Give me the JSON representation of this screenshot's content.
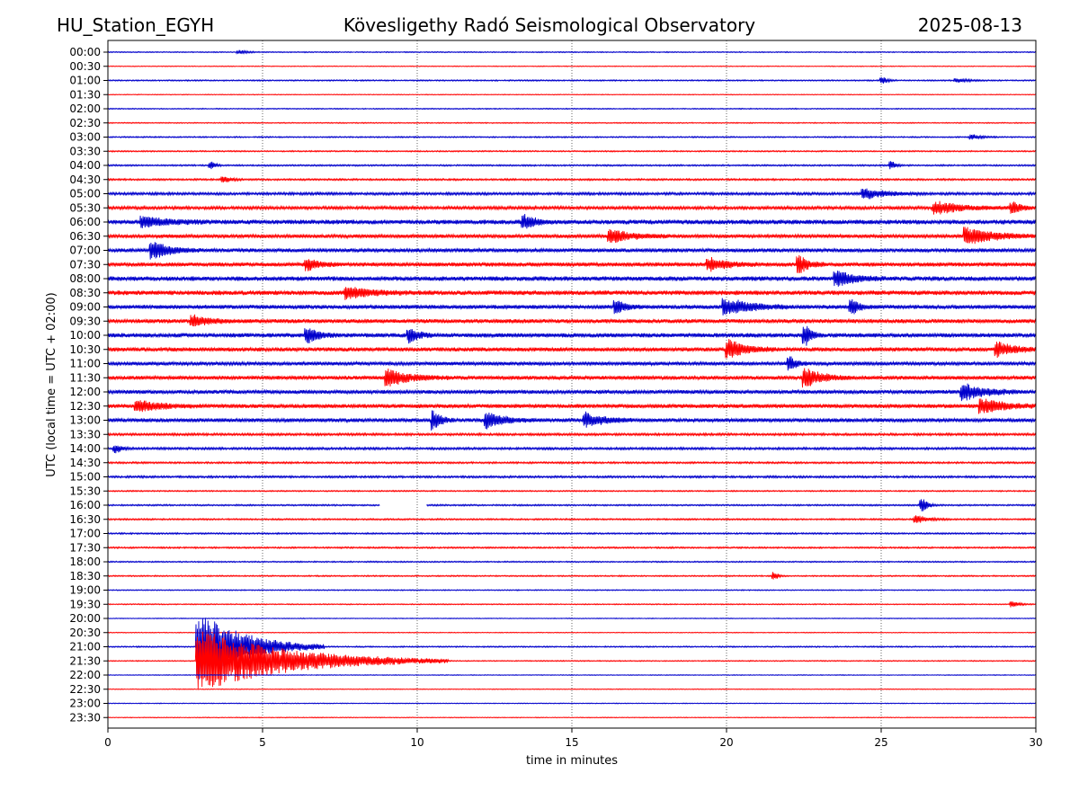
{
  "header": {
    "station": "HU_Station_EGYH",
    "title": "Kövesligethy Radó Seismological Observatory",
    "date": "2025-08-13"
  },
  "chart_data": {
    "type": "line",
    "title": "Kövesligethy Radó Seismological Observatory",
    "xlabel": "time in minutes",
    "ylabel": "UTC (local time = UTC + 02:00)",
    "xlim": [
      0,
      30
    ],
    "xticks": [
      0,
      5,
      10,
      15,
      20,
      25,
      30
    ],
    "xgrid_dotted": [
      5,
      10,
      15,
      20,
      25
    ],
    "rows": [
      "00:00",
      "00:30",
      "01:00",
      "01:30",
      "02:00",
      "02:30",
      "03:00",
      "03:30",
      "04:00",
      "04:30",
      "05:00",
      "05:30",
      "06:00",
      "06:30",
      "07:00",
      "07:30",
      "08:00",
      "08:30",
      "09:00",
      "09:30",
      "10:00",
      "10:30",
      "11:00",
      "11:30",
      "12:00",
      "12:30",
      "13:00",
      "13:30",
      "14:00",
      "14:30",
      "15:00",
      "15:30",
      "16:00",
      "16:30",
      "17:00",
      "17:30",
      "18:00",
      "18:30",
      "19:00",
      "19:30",
      "20:00",
      "20:30",
      "21:00",
      "21:30",
      "22:00",
      "22:30",
      "23:00",
      "23:30"
    ],
    "colors": [
      "#0000cc",
      "#ff0000"
    ],
    "noise_level": [
      0.4,
      0.3,
      0.5,
      0.3,
      0.4,
      0.4,
      0.5,
      0.5,
      0.6,
      0.7,
      1.0,
      1.2,
      1.8,
      1.4,
      1.5,
      1.6,
      1.8,
      1.8,
      1.6,
      1.6,
      1.7,
      1.6,
      1.4,
      1.5,
      1.5,
      1.6,
      1.5,
      0.9,
      0.9,
      0.7,
      0.8,
      0.5,
      0.6,
      0.6,
      0.6,
      0.6,
      0.5,
      0.5,
      0.4,
      0.4,
      0.3,
      0.3,
      0.5,
      0.4,
      0.3,
      0.3,
      0.3,
      0.3
    ],
    "events": [
      {
        "row": "00:00",
        "t": 4.3,
        "amp": 2,
        "dur": 0.6
      },
      {
        "row": "01:00",
        "t": 25.1,
        "amp": 3,
        "dur": 0.4
      },
      {
        "row": "01:00",
        "t": 27.5,
        "amp": 2,
        "dur": 1.0
      },
      {
        "row": "03:00",
        "t": 28.0,
        "amp": 2.5,
        "dur": 0.8
      },
      {
        "row": "04:00",
        "t": 3.4,
        "amp": 4,
        "dur": 0.3
      },
      {
        "row": "04:00",
        "t": 25.4,
        "amp": 4,
        "dur": 0.3
      },
      {
        "row": "04:30",
        "t": 3.8,
        "amp": 3,
        "dur": 0.6
      },
      {
        "row": "05:00",
        "t": 24.5,
        "amp": 6,
        "dur": 2.0
      },
      {
        "row": "05:30",
        "t": 26.8,
        "amp": 7,
        "dur": 2.5
      },
      {
        "row": "05:30",
        "t": 29.3,
        "amp": 6,
        "dur": 0.8
      },
      {
        "row": "06:00",
        "t": 1.2,
        "amp": 6,
        "dur": 2.0
      },
      {
        "row": "06:00",
        "t": 13.5,
        "amp": 7,
        "dur": 1.0
      },
      {
        "row": "06:30",
        "t": 16.3,
        "amp": 7,
        "dur": 2.0
      },
      {
        "row": "06:30",
        "t": 27.8,
        "amp": 9,
        "dur": 2.5
      },
      {
        "row": "07:00",
        "t": 1.5,
        "amp": 9,
        "dur": 1.5
      },
      {
        "row": "07:30",
        "t": 6.5,
        "amp": 6,
        "dur": 1.0
      },
      {
        "row": "07:30",
        "t": 19.5,
        "amp": 7,
        "dur": 1.5
      },
      {
        "row": "07:30",
        "t": 22.4,
        "amp": 9,
        "dur": 0.8
      },
      {
        "row": "08:00",
        "t": 23.6,
        "amp": 8,
        "dur": 1.5
      },
      {
        "row": "08:30",
        "t": 7.8,
        "amp": 6,
        "dur": 2.0
      },
      {
        "row": "09:00",
        "t": 20.0,
        "amp": 10,
        "dur": 2.0
      },
      {
        "row": "09:00",
        "t": 16.5,
        "amp": 7,
        "dur": 0.8
      },
      {
        "row": "09:00",
        "t": 24.1,
        "amp": 8,
        "dur": 0.6
      },
      {
        "row": "09:30",
        "t": 2.8,
        "amp": 6,
        "dur": 1.5
      },
      {
        "row": "10:00",
        "t": 6.5,
        "amp": 8,
        "dur": 1.0
      },
      {
        "row": "10:00",
        "t": 9.8,
        "amp": 8,
        "dur": 0.8
      },
      {
        "row": "10:00",
        "t": 22.6,
        "amp": 10,
        "dur": 0.5
      },
      {
        "row": "10:30",
        "t": 20.1,
        "amp": 10,
        "dur": 1.5
      },
      {
        "row": "10:30",
        "t": 28.8,
        "amp": 8,
        "dur": 1.5
      },
      {
        "row": "11:00",
        "t": 22.1,
        "amp": 7,
        "dur": 0.6
      },
      {
        "row": "11:30",
        "t": 9.1,
        "amp": 9,
        "dur": 2.0
      },
      {
        "row": "11:30",
        "t": 22.6,
        "amp": 10,
        "dur": 1.5
      },
      {
        "row": "12:00",
        "t": 27.7,
        "amp": 9,
        "dur": 2.0
      },
      {
        "row": "12:30",
        "t": 1.0,
        "amp": 6,
        "dur": 2.0
      },
      {
        "row": "12:30",
        "t": 28.3,
        "amp": 8,
        "dur": 2.0
      },
      {
        "row": "13:00",
        "t": 10.6,
        "amp": 10,
        "dur": 0.6
      },
      {
        "row": "13:00",
        "t": 12.3,
        "amp": 9,
        "dur": 1.5
      },
      {
        "row": "13:00",
        "t": 15.5,
        "amp": 8,
        "dur": 1.5
      },
      {
        "row": "14:00",
        "t": 0.3,
        "amp": 4,
        "dur": 0.5
      },
      {
        "row": "16:00",
        "t": 26.4,
        "amp": 7,
        "dur": 0.4
      },
      {
        "row": "16:30",
        "t": 26.2,
        "amp": 4,
        "dur": 1.0
      },
      {
        "row": "18:30",
        "t": 21.6,
        "amp": 4,
        "dur": 0.3
      },
      {
        "row": "19:30",
        "t": 29.3,
        "amp": 3,
        "dur": 0.6
      },
      {
        "row": "21:00",
        "t": 3.0,
        "amp": 40,
        "dur": 4.0
      },
      {
        "row": "21:30",
        "t": 3.0,
        "amp": 35,
        "dur": 8.0
      }
    ],
    "gaps": [
      {
        "row": "16:00",
        "from": 8.8,
        "to": 10.3
      }
    ]
  }
}
